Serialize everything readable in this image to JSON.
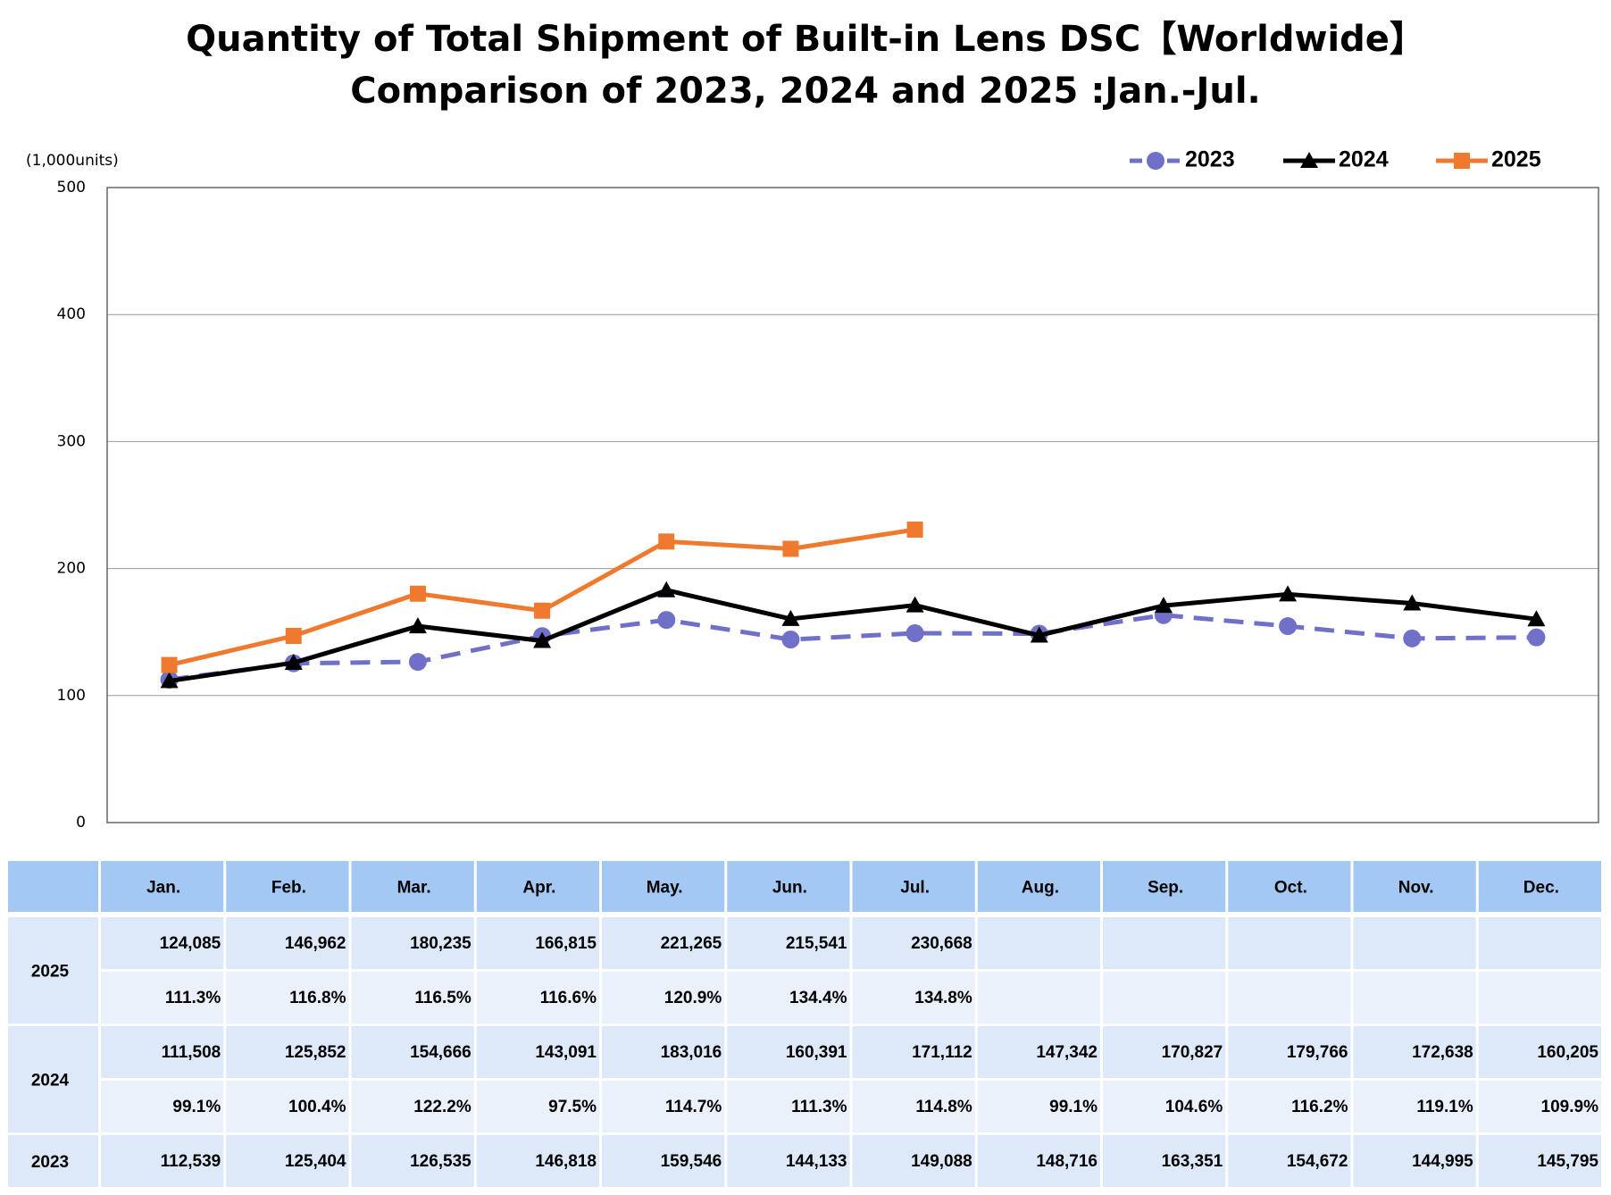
{
  "chart_data": {
    "type": "line",
    "title": [
      "Quantity of Total Shipment of Built-in Lens DSC【Worldwide】",
      "Comparison of 2023, 2024 and 2025 :Jan.-Jul."
    ],
    "y_unit": "(1,000units)",
    "categories": [
      "Jan.",
      "Feb.",
      "Mar.",
      "Apr.",
      "May.",
      "Jun.",
      "Jul.",
      "Aug.",
      "Sep.",
      "Oct.",
      "Nov.",
      "Dec."
    ],
    "ylim": [
      0,
      500
    ],
    "yticks": [
      0,
      100,
      200,
      300,
      400,
      500
    ],
    "grid": true,
    "legend": "top-right",
    "series": [
      {
        "name": "2023",
        "color": "#7070c8",
        "marker": "circle",
        "dashed": true,
        "values": [
          112.539,
          125.404,
          126.535,
          146.818,
          159.546,
          144.133,
          149.088,
          148.716,
          163.351,
          154.672,
          144.995,
          145.795
        ],
        "value_labels": [
          "112,539",
          "125,404",
          "126,535",
          "146,818",
          "159,546",
          "144,133",
          "149,088",
          "148,716",
          "163,351",
          "154,672",
          "144,995",
          "145,795"
        ]
      },
      {
        "name": "2024",
        "color": "#000000",
        "marker": "triangle",
        "dashed": false,
        "values": [
          111.508,
          125.852,
          154.666,
          143.091,
          183.016,
          160.391,
          171.112,
          147.342,
          170.827,
          179.766,
          172.638,
          160.205
        ],
        "value_labels": [
          "111,508",
          "125,852",
          "154,666",
          "143,091",
          "183,016",
          "160,391",
          "171,112",
          "147,342",
          "170,827",
          "179,766",
          "172,638",
          "160,205"
        ],
        "yoy": [
          "99.1%",
          "100.4%",
          "122.2%",
          "97.5%",
          "114.7%",
          "111.3%",
          "114.8%",
          "99.1%",
          "104.6%",
          "116.2%",
          "119.1%",
          "109.9%"
        ]
      },
      {
        "name": "2025",
        "color": "#ef7a2f",
        "marker": "square",
        "dashed": false,
        "values": [
          124.085,
          146.962,
          180.235,
          166.815,
          221.265,
          215.541,
          230.668,
          null,
          null,
          null,
          null,
          null
        ],
        "value_labels": [
          "124,085",
          "146,962",
          "180,235",
          "166,815",
          "221,265",
          "215,541",
          "230,668",
          null,
          null,
          null,
          null,
          null
        ],
        "yoy": [
          "111.3%",
          "116.8%",
          "116.5%",
          "116.6%",
          "120.9%",
          "134.4%",
          "134.8%",
          null,
          null,
          null,
          null,
          null
        ]
      }
    ]
  }
}
